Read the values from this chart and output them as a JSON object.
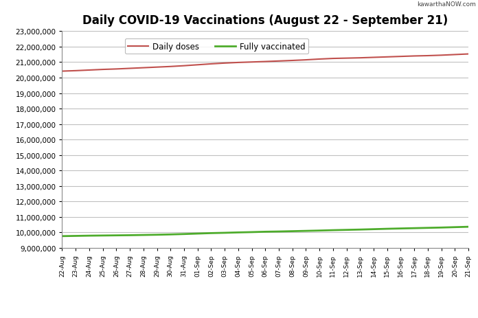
{
  "title": "Daily COVID-19 Vaccinations (August 22 - September 21)",
  "watermark": "kawarthaNOW.com",
  "legend_labels": [
    "Daily doses",
    "Fully vaccinated"
  ],
  "red_color": "#C0504D",
  "green_color": "#4EAC2C",
  "background_color": "#FFFFFF",
  "plot_bg_color": "#FFFFFF",
  "grid_color": "#C0C0C0",
  "ylim": [
    9000000,
    23000000
  ],
  "yticks": [
    9000000,
    10000000,
    11000000,
    12000000,
    13000000,
    14000000,
    15000000,
    16000000,
    17000000,
    18000000,
    19000000,
    20000000,
    21000000,
    22000000,
    23000000
  ],
  "dates": [
    "22-Aug",
    "23-Aug",
    "24-Aug",
    "25-Aug",
    "26-Aug",
    "27-Aug",
    "28-Aug",
    "29-Aug",
    "30-Aug",
    "31-Aug",
    "01-Sep",
    "02-Sep",
    "03-Sep",
    "04-Sep",
    "05-Sep",
    "06-Sep",
    "07-Sep",
    "08-Sep",
    "09-Sep",
    "10-Sep",
    "11-Sep",
    "12-Sep",
    "13-Sep",
    "14-Sep",
    "15-Sep",
    "16-Sep",
    "17-Sep",
    "18-Sep",
    "19-Sep",
    "20-Sep",
    "21-Sep"
  ],
  "daily_doses": [
    20420000,
    20450000,
    20490000,
    20530000,
    20560000,
    20600000,
    20640000,
    20680000,
    20720000,
    20770000,
    20830000,
    20890000,
    20940000,
    20980000,
    21010000,
    21040000,
    21075000,
    21110000,
    21150000,
    21200000,
    21240000,
    21260000,
    21280000,
    21310000,
    21340000,
    21370000,
    21400000,
    21420000,
    21450000,
    21490000,
    21530000
  ],
  "fully_vaccinated": [
    9760000,
    9775000,
    9790000,
    9800000,
    9810000,
    9820000,
    9835000,
    9850000,
    9870000,
    9895000,
    9925000,
    9955000,
    9975000,
    10000000,
    10020000,
    10045000,
    10060000,
    10080000,
    10100000,
    10120000,
    10145000,
    10165000,
    10185000,
    10210000,
    10235000,
    10255000,
    10275000,
    10295000,
    10315000,
    10340000,
    10365000
  ]
}
